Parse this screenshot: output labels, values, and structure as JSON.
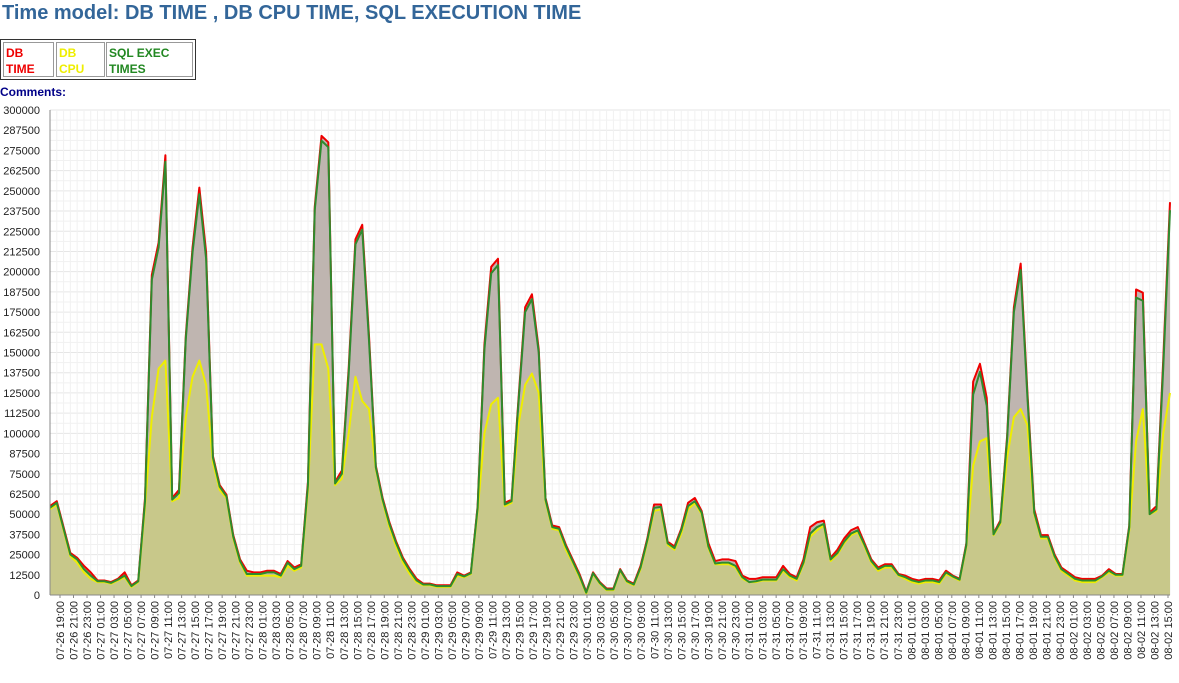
{
  "title": "Time model: DB TIME , DB CPU TIME, SQL EXECUTION TIME",
  "legend": {
    "db_time": "DB TIME",
    "db_cpu": "DB CPU",
    "sql_exec": "SQL EXEC TIMES"
  },
  "comments_label": "Comments:",
  "colors": {
    "db_time": "#ee0000",
    "db_cpu": "#eeee00",
    "sql_exec": "#2e8b2e",
    "gray_fill": "#bfb5b0",
    "yellow_fill": "#c8c88a",
    "grid": "#e6e6e6"
  },
  "chart_data": {
    "type": "area",
    "ylim": [
      0,
      300000
    ],
    "y_ticks": [
      0,
      12500,
      25000,
      37500,
      50000,
      62500,
      75000,
      87500,
      100000,
      112500,
      125000,
      137500,
      150000,
      162500,
      175000,
      187500,
      200000,
      212500,
      225000,
      237500,
      250000,
      262500,
      275000,
      287500,
      300000
    ],
    "x_labels": [
      "07-26 19:00",
      "07-26 21:00",
      "07-26 23:00",
      "07-27 01:00",
      "07-27 03:00",
      "07-27 05:00",
      "07-27 07:00",
      "07-27 09:00",
      "07-27 11:00",
      "07-27 13:00",
      "07-27 15:00",
      "07-27 17:00",
      "07-27 19:00",
      "07-27 21:00",
      "07-27 23:00",
      "07-28 01:00",
      "07-28 03:00",
      "07-28 05:00",
      "07-28 07:00",
      "07-28 09:00",
      "07-28 11:00",
      "07-28 13:00",
      "07-28 15:00",
      "07-28 17:00",
      "07-28 19:00",
      "07-28 21:00",
      "07-28 23:00",
      "07-29 01:00",
      "07-29 03:00",
      "07-29 05:00",
      "07-29 07:00",
      "07-29 09:00",
      "07-29 11:00",
      "07-29 13:00",
      "07-29 15:00",
      "07-29 17:00",
      "07-29 19:00",
      "07-29 21:00",
      "07-29 23:00",
      "07-30 01:00",
      "07-30 03:00",
      "07-30 05:00",
      "07-30 07:00",
      "07-30 09:00",
      "07-30 11:00",
      "07-30 13:00",
      "07-30 15:00",
      "07-30 17:00",
      "07-30 19:00",
      "07-30 21:00",
      "07-30 23:00",
      "07-31 01:00",
      "07-31 03:00",
      "07-31 05:00",
      "07-31 07:00",
      "07-31 09:00",
      "07-31 11:00",
      "07-31 13:00",
      "07-31 15:00",
      "07-31 17:00",
      "07-31 19:00",
      "07-31 21:00",
      "07-31 23:00",
      "08-01 01:00",
      "08-01 03:00",
      "08-01 05:00",
      "08-01 07:00",
      "08-01 09:00",
      "08-01 11:00",
      "08-01 13:00",
      "08-01 15:00",
      "08-01 17:00",
      "08-01 19:00",
      "08-01 21:00",
      "08-01 23:00",
      "08-02 01:00",
      "08-02 03:00",
      "08-02 05:00",
      "08-02 07:00",
      "08-02 09:00",
      "08-02 11:00",
      "08-02 13:00",
      "08-02 15:00"
    ],
    "series": [
      {
        "name": "DB TIME",
        "values": [
          55000,
          58000,
          42000,
          26000,
          23000,
          18000,
          14000,
          9000,
          9000,
          8000,
          10000,
          14000,
          6000,
          9000,
          60000,
          198000,
          218000,
          272000,
          60000,
          65000,
          160000,
          215000,
          252000,
          212000,
          86000,
          68000,
          62000,
          37000,
          22000,
          15000,
          14000,
          14000,
          15000,
          15000,
          13000,
          21000,
          17000,
          19000,
          70000,
          240000,
          284000,
          280000,
          70000,
          77000,
          140000,
          220000,
          229000,
          160000,
          80000,
          60000,
          45000,
          33000,
          23000,
          16000,
          10000,
          7000,
          7000,
          6000,
          6000,
          6000,
          14000,
          12000,
          14000,
          55000,
          155000,
          203000,
          208000,
          57000,
          59000,
          120000,
          178000,
          186000,
          152000,
          60000,
          43000,
          42000,
          31000,
          22000,
          13000,
          2000,
          14000,
          8000,
          4000,
          4000,
          16000,
          9000,
          7000,
          18000,
          35000,
          56000,
          56000,
          33000,
          30000,
          41000,
          57000,
          60000,
          52000,
          32000,
          21000,
          22000,
          22000,
          21000,
          12000,
          10000,
          10000,
          11000,
          11000,
          11000,
          18000,
          13000,
          11000,
          22000,
          42000,
          45000,
          46000,
          23000,
          28000,
          35000,
          40000,
          42000,
          32000,
          22000,
          17000,
          19000,
          19000,
          13000,
          12000,
          10000,
          9000,
          10000,
          10000,
          9000,
          15000,
          12000,
          10000,
          32000,
          132000,
          143000,
          122000,
          38000,
          46000,
          98000,
          178000,
          205000,
          125000,
          53000,
          37000,
          37000,
          25000,
          17000,
          14000,
          11000,
          10000,
          10000,
          10000,
          12000,
          16000,
          13000,
          13000,
          43000,
          189000,
          187000,
          51000,
          55000,
          145000,
          243000
        ]
      },
      {
        "name": "DB CPU",
        "values": [
          53000,
          56000,
          40000,
          24000,
          20000,
          14000,
          10000,
          8000,
          8000,
          7000,
          9000,
          11000,
          5000,
          8000,
          55000,
          110000,
          140000,
          145000,
          58000,
          60000,
          110000,
          135000,
          145000,
          130000,
          82000,
          65000,
          60000,
          35000,
          20000,
          12000,
          12000,
          12000,
          12000,
          12000,
          11000,
          18000,
          15000,
          17000,
          65000,
          155000,
          155000,
          140000,
          68000,
          72000,
          100000,
          135000,
          120000,
          115000,
          78000,
          58000,
          42000,
          30000,
          20000,
          13000,
          8000,
          6000,
          6000,
          5000,
          5000,
          5000,
          12000,
          11000,
          13000,
          52000,
          100000,
          118000,
          122000,
          55000,
          57000,
          105000,
          130000,
          137000,
          125000,
          58000,
          41000,
          40000,
          28000,
          20000,
          11000,
          1000,
          13000,
          7000,
          3000,
          3000,
          15000,
          8000,
          6000,
          16000,
          33000,
          52000,
          53000,
          31000,
          28000,
          38000,
          53000,
          57000,
          50000,
          29000,
          19000,
          19000,
          19000,
          17000,
          10000,
          8000,
          8000,
          9000,
          9000,
          9000,
          15000,
          11000,
          9000,
          19000,
          36000,
          40000,
          43000,
          21000,
          25000,
          32000,
          37000,
          39000,
          30000,
          20000,
          15000,
          17000,
          17000,
          12000,
          10000,
          8000,
          7000,
          8000,
          8000,
          7000,
          13000,
          11000,
          9000,
          30000,
          80000,
          95000,
          97000,
          37000,
          44000,
          85000,
          110000,
          115000,
          105000,
          50000,
          35000,
          35000,
          23000,
          15000,
          12000,
          9000,
          8000,
          8000,
          8000,
          11000,
          14000,
          12000,
          12000,
          40000,
          95000,
          115000,
          50000,
          52000,
          100000,
          125000
        ]
      },
      {
        "name": "SQL EXEC TIMES",
        "values": [
          54000,
          57000,
          41000,
          25000,
          22000,
          16000,
          12000,
          8500,
          8500,
          7500,
          9500,
          12000,
          5500,
          8500,
          58000,
          195000,
          215000,
          268000,
          59000,
          63000,
          158000,
          212000,
          248000,
          208000,
          85000,
          67000,
          61000,
          36000,
          21000,
          13000,
          13000,
          13000,
          14000,
          14000,
          12000,
          20000,
          16000,
          18000,
          68000,
          238000,
          281000,
          277000,
          69000,
          75000,
          137000,
          217000,
          226000,
          157000,
          79000,
          59000,
          44000,
          32000,
          22000,
          15000,
          9000,
          6500,
          6500,
          5500,
          5500,
          5500,
          13000,
          11500,
          13500,
          54000,
          152000,
          199000,
          204000,
          56000,
          58000,
          118000,
          175000,
          183000,
          150000,
          59000,
          42000,
          41000,
          30000,
          21000,
          12000,
          1500,
          13500,
          7500,
          3500,
          3500,
          15500,
          8500,
          6500,
          17000,
          34000,
          54000,
          54500,
          32000,
          29000,
          40000,
          55000,
          58000,
          51000,
          30000,
          19500,
          20000,
          20000,
          18000,
          11000,
          8000,
          8500,
          9500,
          9500,
          9500,
          16000,
          12000,
          10000,
          20000,
          38000,
          42000,
          44000,
          22000,
          26000,
          33000,
          38000,
          40000,
          31000,
          21000,
          16000,
          18000,
          18000,
          12500,
          11000,
          9000,
          8000,
          9000,
          9000,
          8000,
          14000,
          11500,
          9500,
          31000,
          124000,
          138000,
          117000,
          37500,
          45000,
          96000,
          175000,
          201000,
          122000,
          51000,
          36000,
          36000,
          24000,
          16000,
          13000,
          10000,
          9000,
          9000,
          9000,
          11500,
          15000,
          12500,
          12500,
          42000,
          184000,
          182000,
          50000,
          53000,
          140000,
          238000
        ]
      }
    ]
  }
}
